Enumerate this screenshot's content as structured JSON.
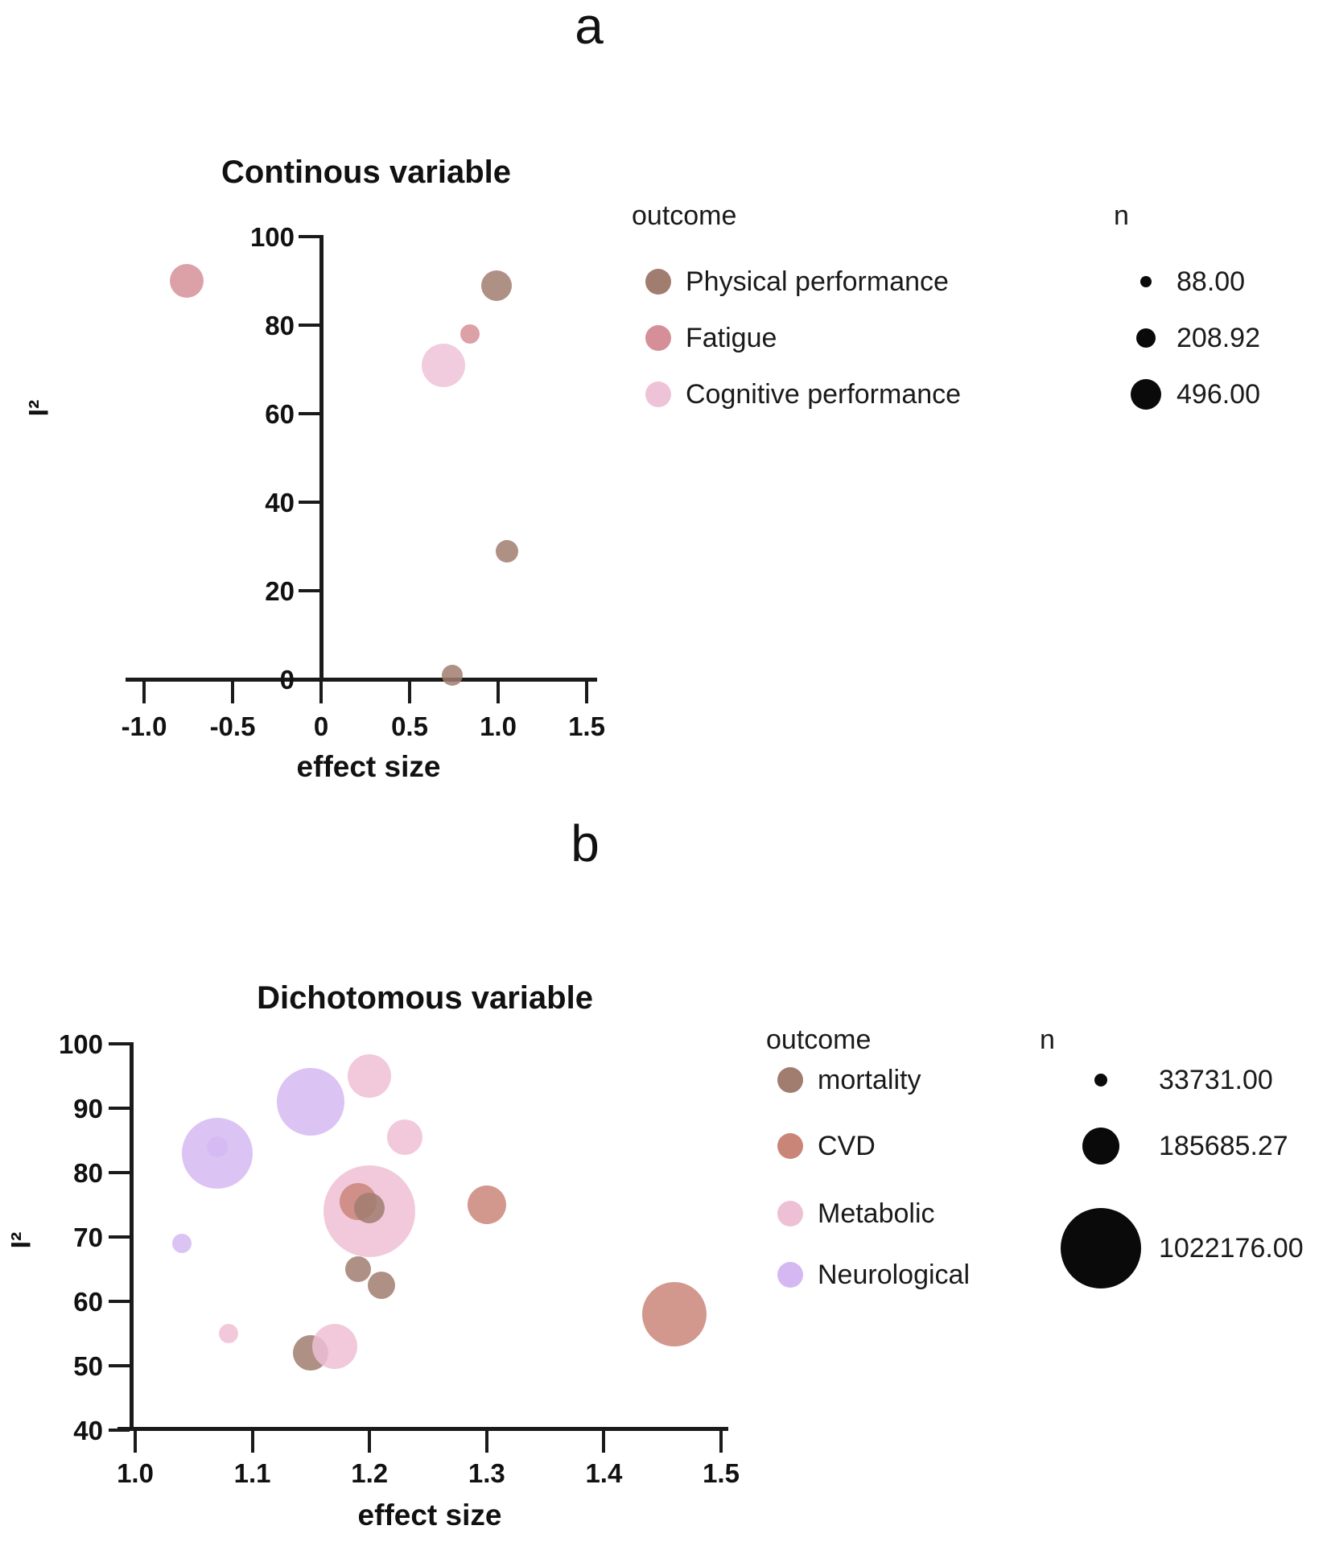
{
  "chart_data": [
    {
      "id": "a",
      "panel_label": "a",
      "type": "bubble",
      "title": "Continous variable",
      "xlabel": "effect size",
      "ylabel": "I²",
      "xlim": [
        -1.0,
        1.5
      ],
      "ylim": [
        0,
        100
      ],
      "grid": false,
      "x_ticks": [
        {
          "value": -1.0,
          "label": "-1.0"
        },
        {
          "value": -0.5,
          "label": "-0.5"
        },
        {
          "value": 0,
          "label": "0"
        },
        {
          "value": 0.5,
          "label": "0.5"
        },
        {
          "value": 1.0,
          "label": "1.0"
        },
        {
          "value": 1.5,
          "label": "1.5"
        }
      ],
      "y_ticks": [
        {
          "value": 100,
          "label": "100"
        },
        {
          "value": 80,
          "label": "80"
        },
        {
          "value": 60,
          "label": "60"
        },
        {
          "value": 40,
          "label": "40"
        },
        {
          "value": 20,
          "label": "20"
        },
        {
          "value": 0,
          "label": "0"
        }
      ],
      "legend": {
        "outcome_header": "outcome",
        "position": "right",
        "items": [
          {
            "label": "Physical performance",
            "color": "#a17d70"
          },
          {
            "label": "Fatigue",
            "color": "#d68f98"
          },
          {
            "label": "Cognitive performance",
            "color": "#eec3d8"
          }
        ],
        "n_header": "n",
        "n_items": [
          {
            "label": "88.00",
            "r": 7
          },
          {
            "label": "208.92",
            "r": 12
          },
          {
            "label": "496.00",
            "r": 19
          }
        ]
      },
      "bubbles": [
        {
          "outcome": "Fatigue",
          "x": -0.76,
          "y": 90,
          "r": 21
        },
        {
          "outcome": "Physical performance",
          "x": 0.99,
          "y": 89,
          "r": 19
        },
        {
          "outcome": "Fatigue",
          "x": 0.84,
          "y": 78,
          "r": 12
        },
        {
          "outcome": "Cognitive performance",
          "x": 0.69,
          "y": 71,
          "r": 27
        },
        {
          "outcome": "Physical performance",
          "x": 1.05,
          "y": 29,
          "r": 14
        },
        {
          "outcome": "Physical performance",
          "x": 0.74,
          "y": 1,
          "r": 13
        }
      ]
    },
    {
      "id": "b",
      "panel_label": "b",
      "type": "bubble",
      "title": "Dichotomous variable",
      "xlabel": "effect size",
      "ylabel": "I²",
      "xlim": [
        1.0,
        1.5
      ],
      "ylim": [
        40,
        100
      ],
      "grid": false,
      "x_ticks": [
        {
          "value": 1.0,
          "label": "1.0"
        },
        {
          "value": 1.1,
          "label": "1.1"
        },
        {
          "value": 1.2,
          "label": "1.2"
        },
        {
          "value": 1.3,
          "label": "1.3"
        },
        {
          "value": 1.4,
          "label": "1.4"
        },
        {
          "value": 1.5,
          "label": "1.5"
        }
      ],
      "y_ticks": [
        {
          "value": 100,
          "label": "100"
        },
        {
          "value": 90,
          "label": "90"
        },
        {
          "value": 80,
          "label": "80"
        },
        {
          "value": 70,
          "label": "70"
        },
        {
          "value": 60,
          "label": "60"
        },
        {
          "value": 50,
          "label": "50"
        },
        {
          "value": 40,
          "label": "40"
        }
      ],
      "legend": {
        "outcome_header": "outcome",
        "position": "right",
        "items": [
          {
            "label": "mortality",
            "color": "#a17d70"
          },
          {
            "label": "CVD",
            "color": "#ca8579"
          },
          {
            "label": "Metabolic",
            "color": "#eec0d5"
          },
          {
            "label": "Neurological",
            "color": "#d5b8f2"
          }
        ],
        "n_header": "n",
        "n_items": [
          {
            "label": "33731.00",
            "r": 8
          },
          {
            "label": "185685.27",
            "r": 23
          },
          {
            "label": "1022176.00",
            "r": 50
          }
        ]
      },
      "bubbles": [
        {
          "outcome": "Neurological",
          "x": 1.15,
          "y": 91,
          "r": 42
        },
        {
          "outcome": "Neurological",
          "x": 1.07,
          "y": 83,
          "r": 44
        },
        {
          "outcome": "Neurological",
          "x": 1.07,
          "y": 84,
          "r": 13
        },
        {
          "outcome": "Metabolic",
          "x": 1.2,
          "y": 95,
          "r": 27
        },
        {
          "outcome": "Metabolic",
          "x": 1.23,
          "y": 85.5,
          "r": 22
        },
        {
          "outcome": "Metabolic",
          "x": 1.2,
          "y": 74,
          "r": 57
        },
        {
          "outcome": "CVD",
          "x": 1.19,
          "y": 75.5,
          "r": 23
        },
        {
          "outcome": "mortality",
          "x": 1.2,
          "y": 74.5,
          "r": 19
        },
        {
          "outcome": "CVD",
          "x": 1.3,
          "y": 75,
          "r": 24
        },
        {
          "outcome": "Neurological",
          "x": 1.04,
          "y": 69,
          "r": 12
        },
        {
          "outcome": "mortality",
          "x": 1.19,
          "y": 65,
          "r": 16
        },
        {
          "outcome": "mortality",
          "x": 1.21,
          "y": 62.5,
          "r": 17
        },
        {
          "outcome": "CVD",
          "x": 1.46,
          "y": 58,
          "r": 40
        },
        {
          "outcome": "Metabolic",
          "x": 1.08,
          "y": 55,
          "r": 12
        },
        {
          "outcome": "mortality",
          "x": 1.15,
          "y": 52,
          "r": 22
        },
        {
          "outcome": "Metabolic",
          "x": 1.17,
          "y": 53,
          "r": 28
        }
      ]
    }
  ]
}
